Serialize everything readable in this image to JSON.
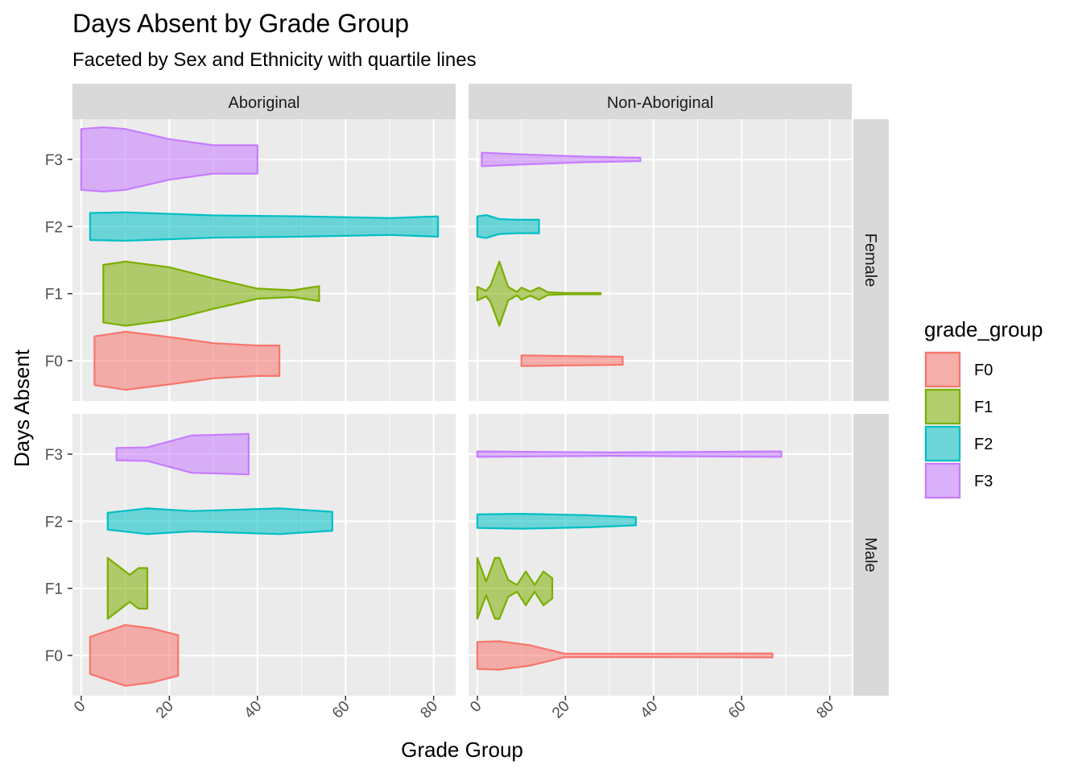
{
  "chart_data": {
    "type": "violin",
    "title": "Days Absent by Grade Group",
    "subtitle": "Faceted by Sex and Ethnicity with quartile lines",
    "xlabel": "Grade Group",
    "ylabel": "Days Absent",
    "xlim": [
      -2,
      85
    ],
    "x_ticks": [
      0,
      20,
      40,
      60,
      80
    ],
    "x_tick_labels": [
      "0",
      "20",
      "40",
      "60",
      "80"
    ],
    "categories": [
      "F0",
      "F1",
      "F2",
      "F3"
    ],
    "columns": [
      "Aboriginal",
      "Non-Aboriginal"
    ],
    "rows": [
      "Female",
      "Male"
    ],
    "grid": true,
    "legend": {
      "title": "grade_group",
      "position": "right",
      "items": [
        {
          "label": "F0",
          "color": "#F8766D"
        },
        {
          "label": "F1",
          "color": "#7CAE00"
        },
        {
          "label": "F2",
          "color": "#00BFC4"
        },
        {
          "label": "F3",
          "color": "#C77CFF"
        }
      ]
    },
    "panels": [
      {
        "column": "Aboriginal",
        "row": "Female",
        "violins": [
          {
            "group": "F0",
            "profile": [
              [
                3,
                0.72
              ],
              [
                10,
                0.86
              ],
              [
                20,
                0.7
              ],
              [
                30,
                0.52
              ],
              [
                40,
                0.45
              ],
              [
                45,
                0.45
              ]
            ]
          },
          {
            "group": "F1",
            "profile": [
              [
                5,
                0.85
              ],
              [
                10,
                0.95
              ],
              [
                20,
                0.78
              ],
              [
                30,
                0.45
              ],
              [
                40,
                0.15
              ],
              [
                48,
                0.1
              ],
              [
                54,
                0.22
              ]
            ]
          },
          {
            "group": "F2",
            "profile": [
              [
                2,
                0.4
              ],
              [
                10,
                0.42
              ],
              [
                30,
                0.33
              ],
              [
                50,
                0.3
              ],
              [
                70,
                0.25
              ],
              [
                81,
                0.3
              ]
            ]
          },
          {
            "group": "F3",
            "profile": [
              [
                0,
                0.9
              ],
              [
                5,
                0.95
              ],
              [
                10,
                0.9
              ],
              [
                20,
                0.6
              ],
              [
                30,
                0.42
              ],
              [
                40,
                0.42
              ]
            ]
          }
        ]
      },
      {
        "column": "Non-Aboriginal",
        "row": "Female",
        "violins": [
          {
            "group": "F0",
            "profile": [
              [
                10,
                0.16
              ],
              [
                20,
                0.14
              ],
              [
                33,
                0.12
              ]
            ]
          },
          {
            "group": "F1",
            "profile": [
              [
                0,
                0.2
              ],
              [
                2,
                0.08
              ],
              [
                3,
                0.25
              ],
              [
                5,
                0.95
              ],
              [
                7,
                0.2
              ],
              [
                9,
                0.05
              ],
              [
                10,
                0.18
              ],
              [
                12,
                0.06
              ],
              [
                14,
                0.18
              ],
              [
                16,
                0.04
              ],
              [
                20,
                0.02
              ],
              [
                28,
                0.02
              ]
            ]
          },
          {
            "group": "F2",
            "profile": [
              [
                0,
                0.3
              ],
              [
                2,
                0.34
              ],
              [
                5,
                0.22
              ],
              [
                9,
                0.2
              ],
              [
                14,
                0.2
              ]
            ]
          },
          {
            "group": "F3",
            "profile": [
              [
                1,
                0.2
              ],
              [
                10,
                0.15
              ],
              [
                25,
                0.08
              ],
              [
                37,
                0.05
              ]
            ]
          }
        ]
      },
      {
        "column": "Aboriginal",
        "row": "Male",
        "violins": [
          {
            "group": "F0",
            "profile": [
              [
                2,
                0.55
              ],
              [
                10,
                0.9
              ],
              [
                16,
                0.8
              ],
              [
                22,
                0.6
              ]
            ]
          },
          {
            "group": "F1",
            "profile": [
              [
                6,
                0.9
              ],
              [
                9,
                0.6
              ],
              [
                11,
                0.4
              ],
              [
                13,
                0.6
              ],
              [
                15,
                0.6
              ]
            ]
          },
          {
            "group": "F2",
            "profile": [
              [
                6,
                0.25
              ],
              [
                15,
                0.38
              ],
              [
                25,
                0.3
              ],
              [
                45,
                0.38
              ],
              [
                57,
                0.28
              ]
            ]
          },
          {
            "group": "F3",
            "profile": [
              [
                8,
                0.18
              ],
              [
                15,
                0.2
              ],
              [
                25,
                0.55
              ],
              [
                38,
                0.6
              ]
            ]
          }
        ]
      },
      {
        "column": "Non-Aboriginal",
        "row": "Male",
        "violins": [
          {
            "group": "F0",
            "profile": [
              [
                0,
                0.4
              ],
              [
                5,
                0.42
              ],
              [
                12,
                0.3
              ],
              [
                20,
                0.05
              ],
              [
                40,
                0.05
              ],
              [
                67,
                0.06
              ]
            ]
          },
          {
            "group": "F1",
            "profile": [
              [
                0,
                0.9
              ],
              [
                2,
                0.2
              ],
              [
                4,
                0.9
              ],
              [
                5,
                0.9
              ],
              [
                7,
                0.25
              ],
              [
                9,
                0.1
              ],
              [
                11,
                0.5
              ],
              [
                13,
                0.1
              ],
              [
                15,
                0.5
              ],
              [
                17,
                0.3
              ]
            ]
          },
          {
            "group": "F2",
            "profile": [
              [
                0,
                0.2
              ],
              [
                10,
                0.22
              ],
              [
                25,
                0.18
              ],
              [
                36,
                0.12
              ]
            ]
          },
          {
            "group": "F3",
            "profile": [
              [
                0,
                0.08
              ],
              [
                30,
                0.05
              ],
              [
                69,
                0.08
              ]
            ]
          }
        ]
      }
    ]
  }
}
